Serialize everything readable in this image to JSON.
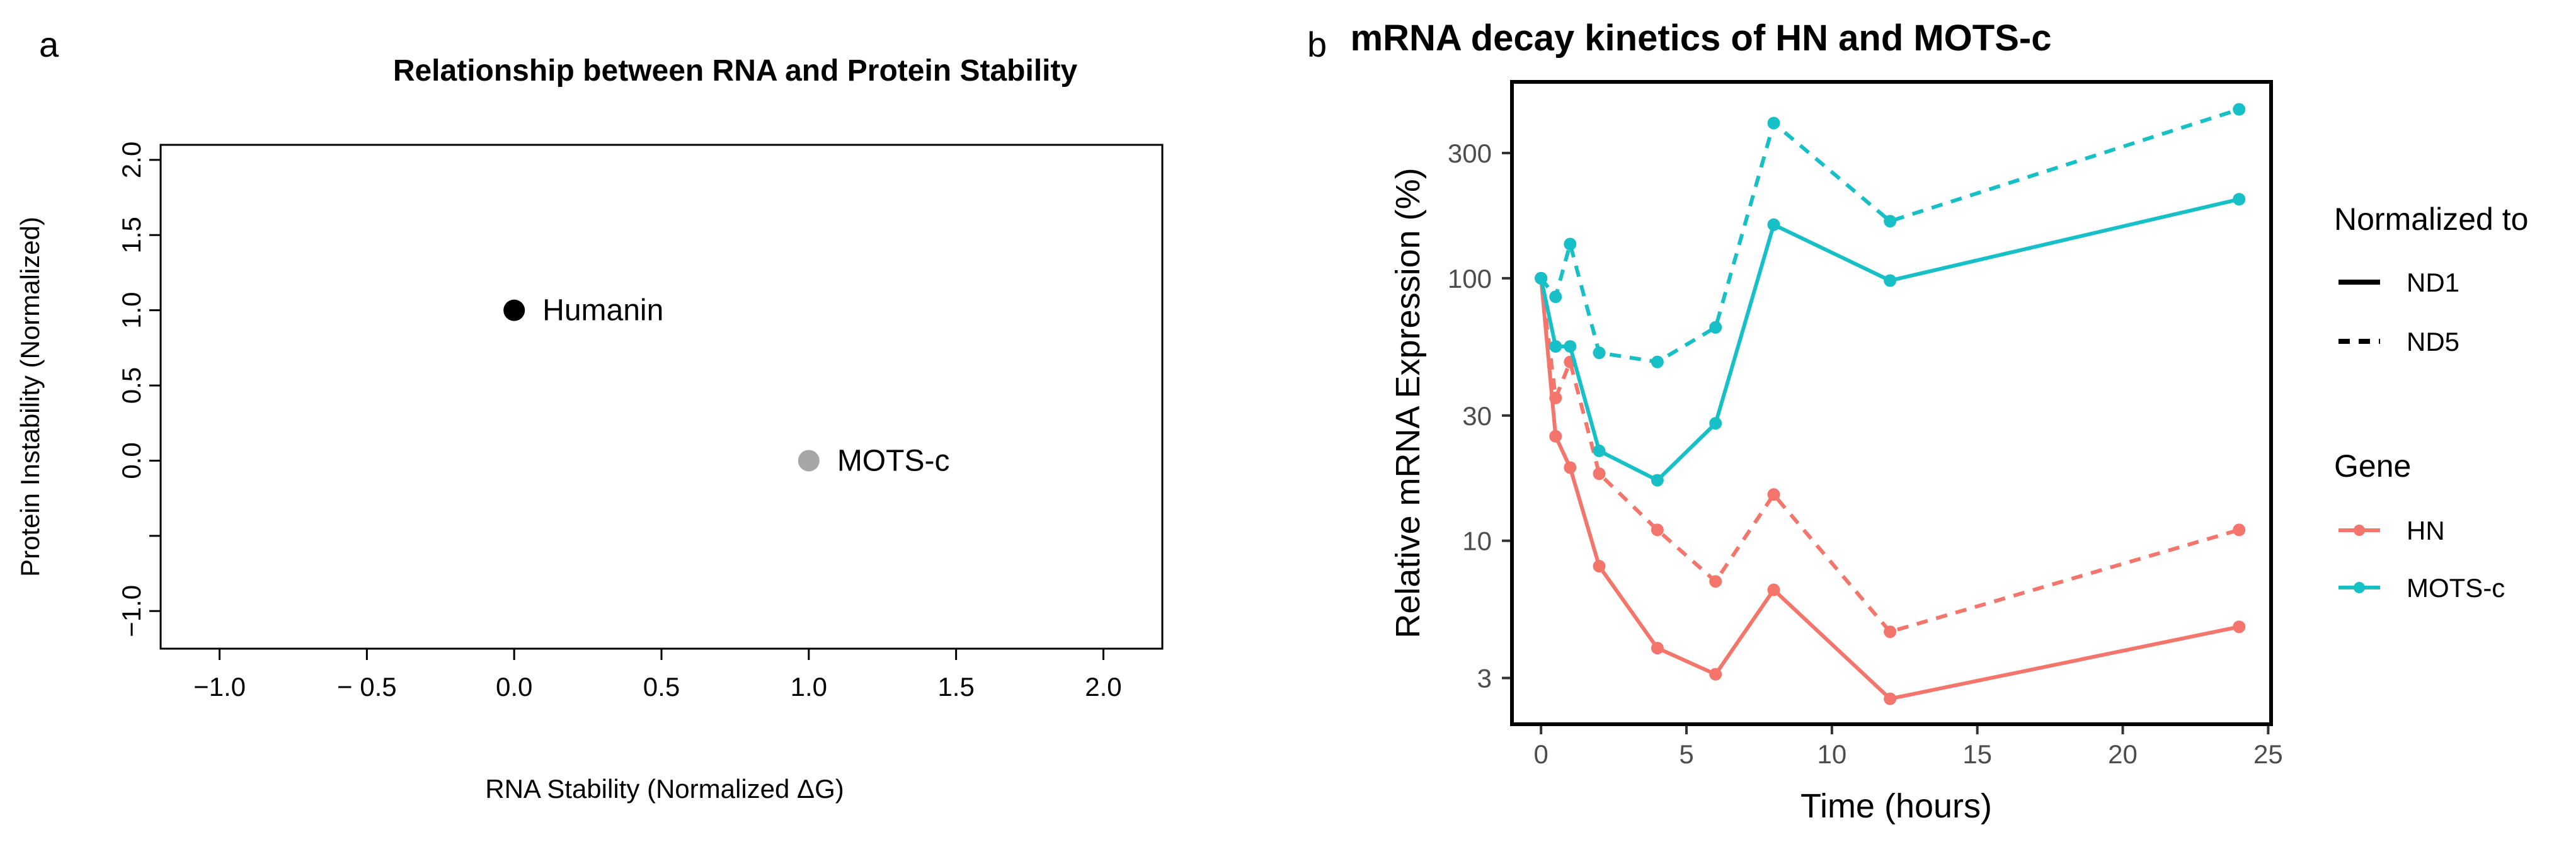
{
  "figure": {
    "panel_a_label": "a",
    "panel_b_label": "b"
  },
  "colors": {
    "humanin_point": "#000000",
    "motsc_point": "#a6a6a6",
    "hn_line": "#f4756b",
    "motsc_line": "#17bfc6",
    "axis": "#000000",
    "tick_text_b": "#4d4d4d"
  },
  "chart_data": [
    {
      "type": "scatter",
      "title": "Relationship between RNA and Protein Stability",
      "xlabel": "RNA Stability (Normalized ΔG)",
      "ylabel": "Protein Instability (Normalized)",
      "xlim": [
        -1.2,
        2.2
      ],
      "ylim": [
        -1.25,
        2.1
      ],
      "xticks": [
        -1.0,
        -0.5,
        0.0,
        0.5,
        1.0,
        1.5,
        2.0
      ],
      "xtick_labels": [
        "−1.0",
        "− 0.5",
        "0.0",
        "0.5",
        "1.0",
        "1.5",
        "2.0"
      ],
      "yticks": [
        -1.0,
        -0.5,
        0.0,
        0.5,
        1.0,
        1.5,
        2.0
      ],
      "ytick_labels": [
        "−1.0",
        "",
        "0.0",
        "0.5",
        "1.0",
        "1.5",
        "2.0"
      ],
      "grid": false,
      "points": [
        {
          "name": "Humanin",
          "x": 0.0,
          "y": 1.0,
          "label": "Humanin"
        },
        {
          "name": "MOTS-c",
          "x": 1.0,
          "y": 0.0,
          "label": "MOTS-c"
        }
      ]
    },
    {
      "type": "line",
      "title": "mRNA decay kinetics of HN and MOTS-c",
      "xlabel": "Time (hours)",
      "ylabel": "Relative mRNA Expression (%)",
      "y_scale": "log10",
      "xlim": [
        -1.0,
        25.1
      ],
      "ylim": [
        2.0,
        560
      ],
      "xticks": [
        0,
        5,
        10,
        15,
        20,
        25
      ],
      "xtick_labels": [
        "0",
        "5",
        "10",
        "15",
        "20",
        "25"
      ],
      "yticks": [
        3,
        10,
        30,
        100,
        300
      ],
      "ytick_labels": [
        "3",
        "10",
        "30",
        "100",
        "300"
      ],
      "grid": false,
      "x": [
        0,
        0.5,
        1,
        2,
        4,
        6,
        8,
        12,
        24
      ],
      "series": [
        {
          "name": "HN",
          "normalized_to": "ND1",
          "gene": "HN",
          "values": [
            100,
            25,
            19,
            8,
            3.9,
            3.1,
            6.5,
            2.5,
            4.7
          ]
        },
        {
          "name": "HN",
          "normalized_to": "ND5",
          "gene": "HN",
          "values": [
            100,
            35,
            48,
            18,
            11,
            7,
            15,
            4.5,
            11
          ]
        },
        {
          "name": "MOTS-c",
          "normalized_to": "ND1",
          "gene": "MOTS-c",
          "values": [
            100,
            55,
            55,
            22,
            17,
            28,
            160,
            98,
            200
          ]
        },
        {
          "name": "MOTS-c",
          "normalized_to": "ND5",
          "gene": "MOTS-c",
          "values": [
            100,
            85,
            135,
            52,
            48,
            65,
            390,
            165,
            440
          ]
        }
      ],
      "legend": {
        "placement": "right",
        "normalized_title": "Normalized to",
        "normalized_items": [
          "ND1",
          "ND5"
        ],
        "gene_title": "Gene",
        "gene_items": [
          "HN",
          "MOTS-c"
        ]
      }
    }
  ]
}
